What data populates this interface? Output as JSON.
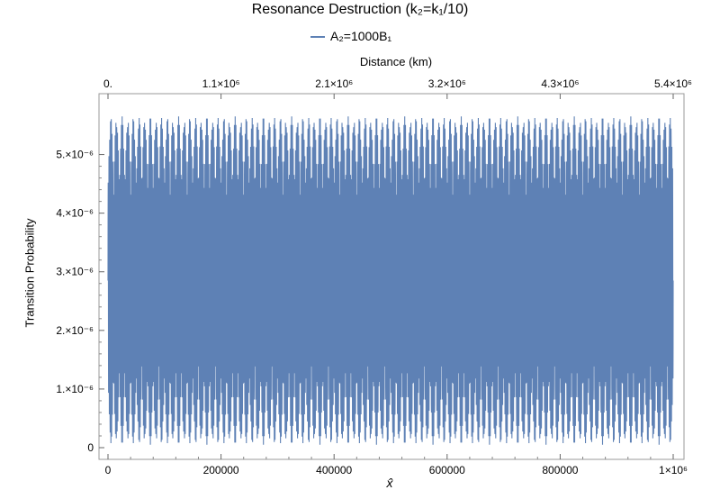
{
  "chart_data": {
    "type": "line",
    "title": "Resonance Destruction (k₂=k₁/10)",
    "legend": {
      "entries": [
        "A₂=1000B₁"
      ],
      "placement": "top-center"
    },
    "series_color": "#5e81b5",
    "xlabel": "x̂",
    "ylabel": "Transition Probability",
    "top_axis_label": "Distance (km)",
    "xlim": [
      0,
      1000000
    ],
    "ylim": [
      0,
      5.7e-06
    ],
    "grid": false,
    "x_ticks": [
      {
        "value": 0,
        "label": "0"
      },
      {
        "value": 200000,
        "label": "200000"
      },
      {
        "value": 400000,
        "label": "400000"
      },
      {
        "value": 600000,
        "label": "600000"
      },
      {
        "value": 800000,
        "label": "800000"
      },
      {
        "value": 1000000,
        "label": "1×10⁶"
      }
    ],
    "top_ticks": [
      {
        "value": 0,
        "label": "0."
      },
      {
        "value": 200000,
        "label": "1.1×10⁶"
      },
      {
        "value": 400000,
        "label": "2.1×10⁶"
      },
      {
        "value": 600000,
        "label": "3.2×10⁶"
      },
      {
        "value": 800000,
        "label": "4.3×10⁶"
      },
      {
        "value": 1000000,
        "label": "5.4×10⁶"
      }
    ],
    "y_ticks": [
      {
        "value": 0,
        "label": "0"
      },
      {
        "value": 1e-06,
        "label": "1.×10⁻⁶"
      },
      {
        "value": 2e-06,
        "label": "2.×10⁻⁶"
      },
      {
        "value": 3e-06,
        "label": "3.×10⁻⁶"
      },
      {
        "value": 4e-06,
        "label": "4.×10⁻⁶"
      },
      {
        "value": 5e-06,
        "label": "5.×10⁻⁶"
      }
    ],
    "series": [
      {
        "oscillation": {
          "mean": 2.85e-06,
          "max": 5.65e-06,
          "min": 0.0,
          "envelope_cycles_over_range": 100,
          "dense_band": [
            2.3e-06,
            3.45e-06
          ]
        }
      }
    ]
  }
}
